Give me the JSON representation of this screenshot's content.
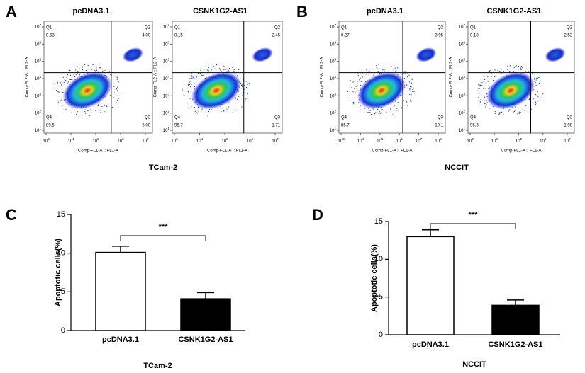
{
  "figure": {
    "flow": [
      {
        "letter": "A",
        "group": "TCam-2",
        "plots": [
          {
            "title": "pcDNA3.1",
            "xtick_exps": [
              3,
              4,
              5,
              6,
              7
            ],
            "quadrants": [
              {
                "name": "Q1",
                "value": "0.53"
              },
              {
                "name": "Q2",
                "value": "4.00"
              },
              {
                "name": "Q3",
                "value": "6.00"
              },
              {
                "name": "Q4",
                "value": "89.5"
              }
            ]
          },
          {
            "title": "CSNK1G2-AS1",
            "xtick_exps": [
              3,
              4,
              5,
              6,
              7
            ],
            "quadrants": [
              {
                "name": "Q1",
                "value": "0.15"
              },
              {
                "name": "Q2",
                "value": "2.45"
              },
              {
                "name": "Q3",
                "value": "1.71"
              },
              {
                "name": "Q4",
                "value": "95.7"
              }
            ]
          }
        ]
      },
      {
        "letter": "B",
        "group": "NCCIT",
        "plots": [
          {
            "title": "pcDNA3.1",
            "xtick_exps": [
              3,
              4,
              5,
              6,
              7,
              8
            ],
            "quadrants": [
              {
                "name": "Q1",
                "value": "0.27"
              },
              {
                "name": "Q2",
                "value": "3.95"
              },
              {
                "name": "Q3",
                "value": "10.1"
              },
              {
                "name": "Q4",
                "value": "85.7"
              }
            ]
          },
          {
            "title": "CSNK1G2-AS1",
            "xtick_exps": [
              3,
              4,
              5,
              6,
              7
            ],
            "quadrants": [
              {
                "name": "Q1",
                "value": "0.18"
              },
              {
                "name": "Q2",
                "value": "2.53"
              },
              {
                "name": "Q3",
                "value": "1.98"
              },
              {
                "name": "Q4",
                "value": "95.3"
              }
            ]
          }
        ]
      }
    ],
    "flow_x_label": "Comp-FL1-A :: FL1-A",
    "flow_y_label": "Comp-FL2-A :: FL2-A",
    "tick_base": "10",
    "ytick_exps": [
      1,
      2,
      3,
      4,
      5,
      6,
      7
    ]
  },
  "chart_data": [
    {
      "type": "bar",
      "letter": "C",
      "categories": [
        "pcDNA3.1",
        "CSNK1G2-AS1"
      ],
      "values": [
        10.1,
        4.1
      ],
      "errors": [
        0.8,
        0.8
      ],
      "colors": [
        "#ffffff",
        "#000000"
      ],
      "ylabel": "Apoptotic cells(%)",
      "xlabel": "TCam-2",
      "ylim": [
        0,
        15
      ],
      "yticks": [
        0,
        5,
        10,
        15
      ],
      "significance": "***"
    },
    {
      "type": "bar",
      "letter": "D",
      "categories": [
        "pcDNA3.1",
        "CSNK1G2-AS1"
      ],
      "values": [
        13.0,
        3.9
      ],
      "errors": [
        0.9,
        0.7
      ],
      "colors": [
        "#ffffff",
        "#000000"
      ],
      "ylabel": "Apoptotic cells(%)",
      "xlabel": "NCCIT",
      "ylim": [
        0,
        15
      ],
      "yticks": [
        0,
        5,
        10,
        15
      ],
      "significance": "***"
    }
  ]
}
